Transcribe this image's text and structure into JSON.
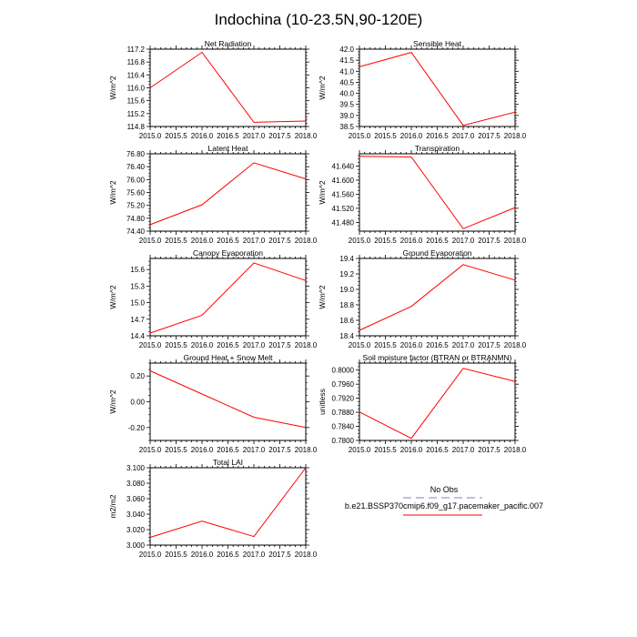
{
  "page": {
    "title": "Indochina (10-23.5N,90-120E)"
  },
  "legend": {
    "entries": [
      {
        "label": "No Obs",
        "color": "#aaaadd",
        "style": "dashed"
      },
      {
        "label": "b.e21.BSSP370cmip6.f09_g17.pacemaker_pacific.007",
        "color": "#ff0000",
        "style": "solid"
      }
    ]
  },
  "chart_data": [
    {
      "type": "line",
      "title": "Net Radiation",
      "ylabel": "W/m^2",
      "x": [
        2015.0,
        2016.0,
        2017.0,
        2018.0
      ],
      "xlim": [
        2015.0,
        2018.0
      ],
      "xticks": [
        "2015.0",
        "2015.5",
        "2016.0",
        "2016.5",
        "2017.0",
        "2017.5",
        "2018.0"
      ],
      "ylim": [
        114.8,
        117.2
      ],
      "yticks": [
        "114.8",
        "115.2",
        "115.6",
        "116.0",
        "116.4",
        "116.8",
        "117.2"
      ],
      "series": [
        {
          "name": "b.e21.BSSP370cmip6.f09_g17.pacemaker_pacific.007",
          "values": [
            116.0,
            117.1,
            114.93,
            114.97
          ],
          "color": "#ff0000"
        }
      ]
    },
    {
      "type": "line",
      "title": "Sensible Heat",
      "ylabel": "W/m^2",
      "x": [
        2015.0,
        2016.0,
        2017.0,
        2018.0
      ],
      "xlim": [
        2015.0,
        2018.0
      ],
      "xticks": [
        "2015.0",
        "2015.5",
        "2016.0",
        "2016.5",
        "2017.0",
        "2017.5",
        "2018.0"
      ],
      "ylim": [
        38.5,
        42.0
      ],
      "yticks": [
        "38.5",
        "39.0",
        "39.5",
        "40.0",
        "40.5",
        "41.0",
        "41.5",
        "42.0"
      ],
      "series": [
        {
          "name": "b.e21.BSSP370cmip6.f09_g17.pacemaker_pacific.007",
          "values": [
            41.2,
            41.85,
            38.55,
            39.15
          ],
          "color": "#ff0000"
        }
      ]
    },
    {
      "type": "line",
      "title": "Latent Heat",
      "ylabel": "W/m^2",
      "x": [
        2015.0,
        2016.0,
        2017.0,
        2018.0
      ],
      "xlim": [
        2015.0,
        2018.0
      ],
      "xticks": [
        "2015.0",
        "2015.5",
        "2016.0",
        "2016.5",
        "2017.0",
        "2017.5",
        "2018.0"
      ],
      "ylim": [
        74.4,
        76.8
      ],
      "yticks": [
        "74.40",
        "74.80",
        "75.20",
        "75.60",
        "76.00",
        "76.40",
        "76.80"
      ],
      "series": [
        {
          "name": "b.e21.BSSP370cmip6.f09_g17.pacemaker_pacific.007",
          "values": [
            74.6,
            75.22,
            76.52,
            76.02
          ],
          "color": "#ff0000"
        }
      ]
    },
    {
      "type": "line",
      "title": "Transpiration",
      "ylabel": "W/m^2",
      "x": [
        2015.0,
        2016.0,
        2017.0,
        2018.0
      ],
      "xlim": [
        2015.0,
        2018.0
      ],
      "xticks": [
        "2015.0",
        "2015.5",
        "2016.0",
        "2016.5",
        "2017.0",
        "2017.5",
        "2018.0"
      ],
      "ylim": [
        41.455,
        41.675
      ],
      "yticks": [
        "41.480",
        "41.520",
        "41.560",
        "41.600",
        "41.640"
      ],
      "series": [
        {
          "name": "b.e21.BSSP370cmip6.f09_g17.pacemaker_pacific.007",
          "values": [
            41.668,
            41.666,
            41.462,
            41.522
          ],
          "color": "#ff0000"
        }
      ]
    },
    {
      "type": "line",
      "title": "Canopy Evaporation",
      "ylabel": "W/m^2",
      "x": [
        2015.0,
        2016.0,
        2017.0,
        2018.0
      ],
      "xlim": [
        2015.0,
        2018.0
      ],
      "xticks": [
        "2015.0",
        "2015.5",
        "2016.0",
        "2016.5",
        "2017.0",
        "2017.5",
        "2018.0"
      ],
      "ylim": [
        14.4,
        15.8
      ],
      "yticks": [
        "14.4",
        "14.7",
        "15.0",
        "15.3",
        "15.6"
      ],
      "series": [
        {
          "name": "b.e21.BSSP370cmip6.f09_g17.pacemaker_pacific.007",
          "values": [
            14.45,
            14.77,
            15.72,
            15.4
          ],
          "color": "#ff0000"
        }
      ]
    },
    {
      "type": "line",
      "title": "Ground Evaporation",
      "ylabel": "W/m^2",
      "x": [
        2015.0,
        2016.0,
        2017.0,
        2018.0
      ],
      "xlim": [
        2015.0,
        2018.0
      ],
      "xticks": [
        "2015.0",
        "2015.5",
        "2016.0",
        "2016.5",
        "2017.0",
        "2017.5",
        "2018.0"
      ],
      "ylim": [
        18.4,
        19.4
      ],
      "yticks": [
        "18.4",
        "18.6",
        "18.8",
        "19.0",
        "19.2",
        "19.4"
      ],
      "series": [
        {
          "name": "b.e21.BSSP370cmip6.f09_g17.pacemaker_pacific.007",
          "values": [
            18.47,
            18.78,
            19.32,
            19.12
          ],
          "color": "#ff0000"
        }
      ]
    },
    {
      "type": "line",
      "title": "Ground Heat + Snow Melt",
      "ylabel": "W/m^2",
      "x": [
        2015.0,
        2016.0,
        2017.0,
        2018.0
      ],
      "xlim": [
        2015.0,
        2018.0
      ],
      "xticks": [
        "2015.0",
        "2015.5",
        "2016.0",
        "2016.5",
        "2017.0",
        "2017.5",
        "2018.0"
      ],
      "ylim": [
        -0.3,
        0.3
      ],
      "yticks": [
        "-0.20",
        "0.00",
        "0.20"
      ],
      "series": [
        {
          "name": "b.e21.BSSP370cmip6.f09_g17.pacemaker_pacific.007",
          "values": [
            0.24,
            0.06,
            -0.12,
            -0.2
          ],
          "color": "#ff0000"
        }
      ]
    },
    {
      "type": "line",
      "title": "Soil moisture factor (BTRAN or BTRANMN)",
      "ylabel": "unitless",
      "x": [
        2015.0,
        2016.0,
        2017.0,
        2018.0
      ],
      "xlim": [
        2015.0,
        2018.0
      ],
      "xticks": [
        "2015.0",
        "2015.5",
        "2016.0",
        "2016.5",
        "2017.0",
        "2017.5",
        "2018.0"
      ],
      "ylim": [
        0.78,
        0.802
      ],
      "yticks": [
        "0.7800",
        "0.7840",
        "0.7880",
        "0.7920",
        "0.7960",
        "0.8000"
      ],
      "series": [
        {
          "name": "b.e21.BSSP370cmip6.f09_g17.pacemaker_pacific.007",
          "values": [
            0.7881,
            0.7806,
            0.8005,
            0.7968
          ],
          "color": "#ff0000"
        }
      ]
    },
    {
      "type": "line",
      "title": "Total LAI",
      "ylabel": "m2/m2",
      "x": [
        2015.0,
        2016.0,
        2017.0,
        2018.0
      ],
      "xlim": [
        2015.0,
        2018.0
      ],
      "xticks": [
        "2015.0",
        "2015.5",
        "2016.0",
        "2016.5",
        "2017.0",
        "2017.5",
        "2018.0"
      ],
      "ylim": [
        3.0,
        3.1
      ],
      "yticks": [
        "3.000",
        "3.020",
        "3.040",
        "3.060",
        "3.080",
        "3.100"
      ],
      "series": [
        {
          "name": "b.e21.BSSP370cmip6.f09_g17.pacemaker_pacific.007",
          "values": [
            3.01,
            3.031,
            3.011,
            3.1
          ],
          "color": "#ff0000"
        }
      ]
    }
  ]
}
